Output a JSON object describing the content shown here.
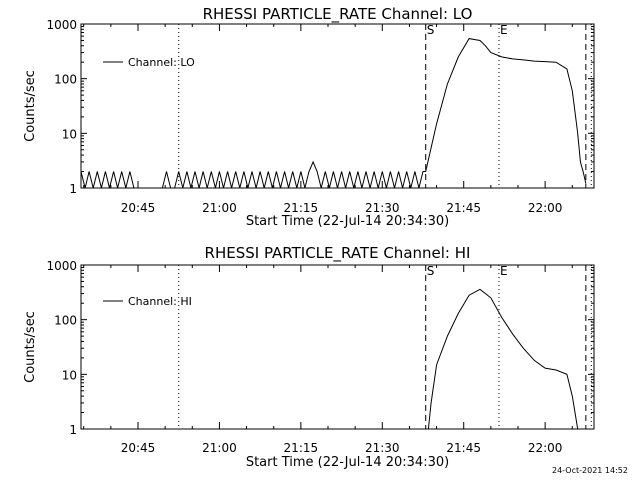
{
  "footer": {
    "timestamp": "24-Oct-2021 14:52"
  },
  "chart_data": [
    {
      "type": "line",
      "title": "RHESSI PARTICLE_RATE Channel: LO",
      "xlabel": "Start Time (22-Jul-14 20:34:30)",
      "ylabel": "Counts/sec",
      "y_scale": "log",
      "ylim": [
        1,
        1000
      ],
      "yticks": [
        "1",
        "10",
        "100",
        "1000"
      ],
      "xlim": [
        "20:34:30",
        "22:09:00"
      ],
      "xticks": [
        "20:45",
        "21:00",
        "21:15",
        "21:30",
        "21:45",
        "22:00"
      ],
      "legend": {
        "position": "top-left",
        "entries": [
          "Channel: LO"
        ]
      },
      "markers": [
        {
          "time": "20:52:30",
          "style": "dotted",
          "label": ""
        },
        {
          "time": "21:38:00",
          "style": "dashed",
          "label": "S"
        },
        {
          "time": "21:51:30",
          "style": "dotted",
          "label": "E"
        },
        {
          "time": "22:07:30",
          "style": "dashed",
          "label": ""
        },
        {
          "time": "22:08:30",
          "style": "dotted",
          "label": ""
        }
      ],
      "series": [
        {
          "name": "Channel: LO",
          "noise_start": "20:34:30",
          "noise_end": "21:38:00",
          "noise_low": 1,
          "noise_high": 2,
          "gap_start": "20:45:00",
          "gap_end": "20:52:00",
          "spike": {
            "time": "21:17:00",
            "value": 3
          },
          "x": [
            "21:38:00",
            "21:40:00",
            "21:42:00",
            "21:44:00",
            "21:46:00",
            "21:48:00",
            "21:49:00",
            "21:50:00",
            "21:52:00",
            "21:54:00",
            "21:56:00",
            "21:58:00",
            "22:00:00",
            "22:02:00",
            "22:04:00",
            "22:05:00",
            "22:06:00",
            "22:06:30",
            "22:07:00",
            "22:07:30"
          ],
          "y": [
            2,
            15,
            80,
            250,
            540,
            500,
            400,
            300,
            250,
            230,
            220,
            210,
            205,
            200,
            150,
            60,
            10,
            3,
            2,
            1.2
          ]
        }
      ]
    },
    {
      "type": "line",
      "title": "RHESSI PARTICLE_RATE Channel: HI",
      "xlabel": "Start Time (22-Jul-14 20:34:30)",
      "ylabel": "Counts/sec",
      "y_scale": "log",
      "ylim": [
        1,
        1000
      ],
      "yticks": [
        "1",
        "10",
        "100",
        "1000"
      ],
      "xlim": [
        "20:34:30",
        "22:09:00"
      ],
      "xticks": [
        "20:45",
        "21:00",
        "21:15",
        "21:30",
        "21:45",
        "22:00"
      ],
      "legend": {
        "position": "top-left",
        "entries": [
          "Channel: HI"
        ]
      },
      "markers": [
        {
          "time": "20:52:30",
          "style": "dotted",
          "label": ""
        },
        {
          "time": "21:38:00",
          "style": "dashed",
          "label": "S"
        },
        {
          "time": "21:51:30",
          "style": "dotted",
          "label": "E"
        },
        {
          "time": "22:07:30",
          "style": "dashed",
          "label": ""
        },
        {
          "time": "22:08:30",
          "style": "dotted",
          "label": ""
        }
      ],
      "series": [
        {
          "name": "Channel: HI",
          "x": [
            "21:38:30",
            "21:39:00",
            "21:40:00",
            "21:42:00",
            "21:44:00",
            "21:46:00",
            "21:48:00",
            "21:50:00",
            "21:52:00",
            "21:54:00",
            "21:56:00",
            "21:58:00",
            "22:00:00",
            "22:02:00",
            "22:04:00",
            "22:05:00",
            "22:06:00"
          ],
          "y": [
            1,
            3,
            15,
            50,
            130,
            280,
            360,
            250,
            110,
            55,
            30,
            18,
            13,
            12,
            10,
            4,
            1
          ]
        }
      ]
    }
  ]
}
